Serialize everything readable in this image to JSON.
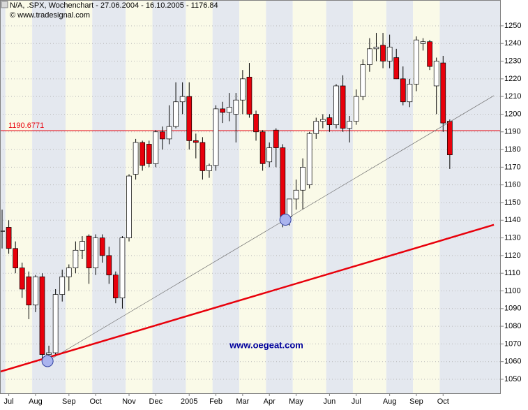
{
  "chart_data": {
    "type": "candlestick",
    "title": "N/A, .SPX, Wochenchart - 27.06.2004 - 16.10.2005 - 1176.84",
    "subtitle": "© www.tradesignal.com",
    "watermark": "www.oegeat.com",
    "categories": [
      null,
      "Jul",
      null,
      null,
      null,
      "Aug",
      null,
      null,
      null,
      null,
      "Sep",
      null,
      null,
      null,
      "Oct",
      null,
      null,
      null,
      null,
      "Nov",
      null,
      null,
      null,
      "Dec",
      null,
      null,
      null,
      null,
      "2005",
      null,
      null,
      null,
      "Feb",
      null,
      null,
      null,
      "Mar",
      null,
      null,
      null,
      "Apr",
      null,
      null,
      null,
      "May",
      null,
      null,
      null,
      null,
      "Jun",
      null,
      null,
      null,
      "Jul",
      null,
      null,
      null,
      null,
      "Aug",
      null,
      null,
      null,
      "Sep",
      null,
      null,
      null,
      "Oct",
      null
    ],
    "open": [
      1134,
      1136,
      1124,
      1113,
      1108,
      1092,
      1108,
      1064,
      1065,
      1098,
      1108,
      1113,
      1123,
      1131,
      1113,
      1130,
      1120,
      1109,
      1096,
      1130,
      1166,
      1184,
      1183,
      1172,
      1190,
      1186,
      1193,
      1207,
      1210,
      1185,
      1184,
      1168,
      1171,
      1203,
      1201,
      1200,
      1208,
      1221,
      1200,
      1190,
      1173,
      1191,
      1181,
      1142,
      1152,
      1157,
      1160,
      1189,
      1196,
      1198,
      1194,
      1216,
      1192,
      1196,
      1210,
      1228,
      1237,
      1239,
      1230,
      1232,
      1220,
      1207,
      1217,
      1240,
      1241,
      1216,
      1229,
      1196
    ],
    "high": [
      1146,
      1140,
      1128,
      1116,
      1111,
      1109,
      1110,
      1069,
      1101,
      1112,
      1115,
      1128,
      1131,
      1132,
      1132,
      1132,
      1125,
      1111,
      1131,
      1166,
      1186,
      1185,
      1185,
      1191,
      1193,
      1205,
      1218,
      1218,
      1218,
      1189,
      1187,
      1172,
      1205,
      1207,
      1212,
      1212,
      1225,
      1229,
      1202,
      1191,
      1184,
      1192,
      1183,
      1152,
      1163,
      1175,
      1190,
      1198,
      1200,
      1200,
      1217,
      1222,
      1199,
      1214,
      1231,
      1243,
      1246,
      1246,
      1245,
      1237,
      1227,
      1220,
      1244,
      1243,
      1242,
      1232,
      1233,
      1197
    ],
    "low": [
      1124,
      1121,
      1110,
      1096,
      1084,
      1088,
      1060,
      1061,
      1064,
      1094,
      1100,
      1110,
      1118,
      1104,
      1109,
      1116,
      1104,
      1093,
      1090,
      1128,
      1163,
      1168,
      1170,
      1170,
      1180,
      1183,
      1192,
      1200,
      1180,
      1175,
      1163,
      1164,
      1168,
      1195,
      1196,
      1184,
      1200,
      1198,
      1185,
      1168,
      1170,
      1170,
      1136,
      1137,
      1146,
      1146,
      1158,
      1186,
      1192,
      1190,
      1192,
      1190,
      1184,
      1194,
      1208,
      1224,
      1230,
      1226,
      1226,
      1220,
      1205,
      1204,
      1213,
      1236,
      1225,
      1200,
      1190,
      1169
    ],
    "close": [
      1134,
      1124,
      1113,
      1101,
      1092,
      1108,
      1064,
      1065,
      1098,
      1108,
      1113,
      1123,
      1128,
      1113,
      1130,
      1120,
      1109,
      1096,
      1130,
      1165,
      1184,
      1171,
      1172,
      1190,
      1186,
      1193,
      1207,
      1210,
      1185,
      1184,
      1168,
      1171,
      1203,
      1201,
      1204,
      1208,
      1220,
      1200,
      1190,
      1172,
      1181,
      1181,
      1142,
      1152,
      1157,
      1170,
      1189,
      1196,
      1197,
      1194,
      1216,
      1192,
      1196,
      1210,
      1228,
      1237,
      1238,
      1230,
      1238,
      1220,
      1207,
      1217,
      1242,
      1241,
      1227,
      1230,
      1195,
      1177
    ],
    "up_color": "#ffffff",
    "down_color": "#e8000b",
    "ylim": [
      1042.1,
      1264.6
    ],
    "yticks": [
      1050,
      1060,
      1070,
      1080,
      1090,
      1100,
      1110,
      1120,
      1130,
      1140,
      1150,
      1160,
      1170,
      1180,
      1190,
      1200,
      1210,
      1220,
      1230,
      1240,
      1250
    ],
    "grid": true,
    "hline": {
      "value": 1190.6771,
      "label": "1190.6771",
      "color": "#e8000b"
    },
    "trendlines": [
      {
        "x": [
          6.8,
          73.6
        ],
        "values": [
          1060.3,
          1210.5
        ],
        "color": "#707070",
        "width": 0.7
      },
      {
        "x": [
          -0.3,
          73.6
        ],
        "values": [
          1054.3,
          1137.4
        ],
        "color": "#e8000b",
        "width": 2.5
      }
    ],
    "markers": {
      "x": [
        6.8,
        42.4
      ],
      "values": [
        1060.3,
        1140.3
      ],
      "color": "#aab4ee"
    }
  }
}
